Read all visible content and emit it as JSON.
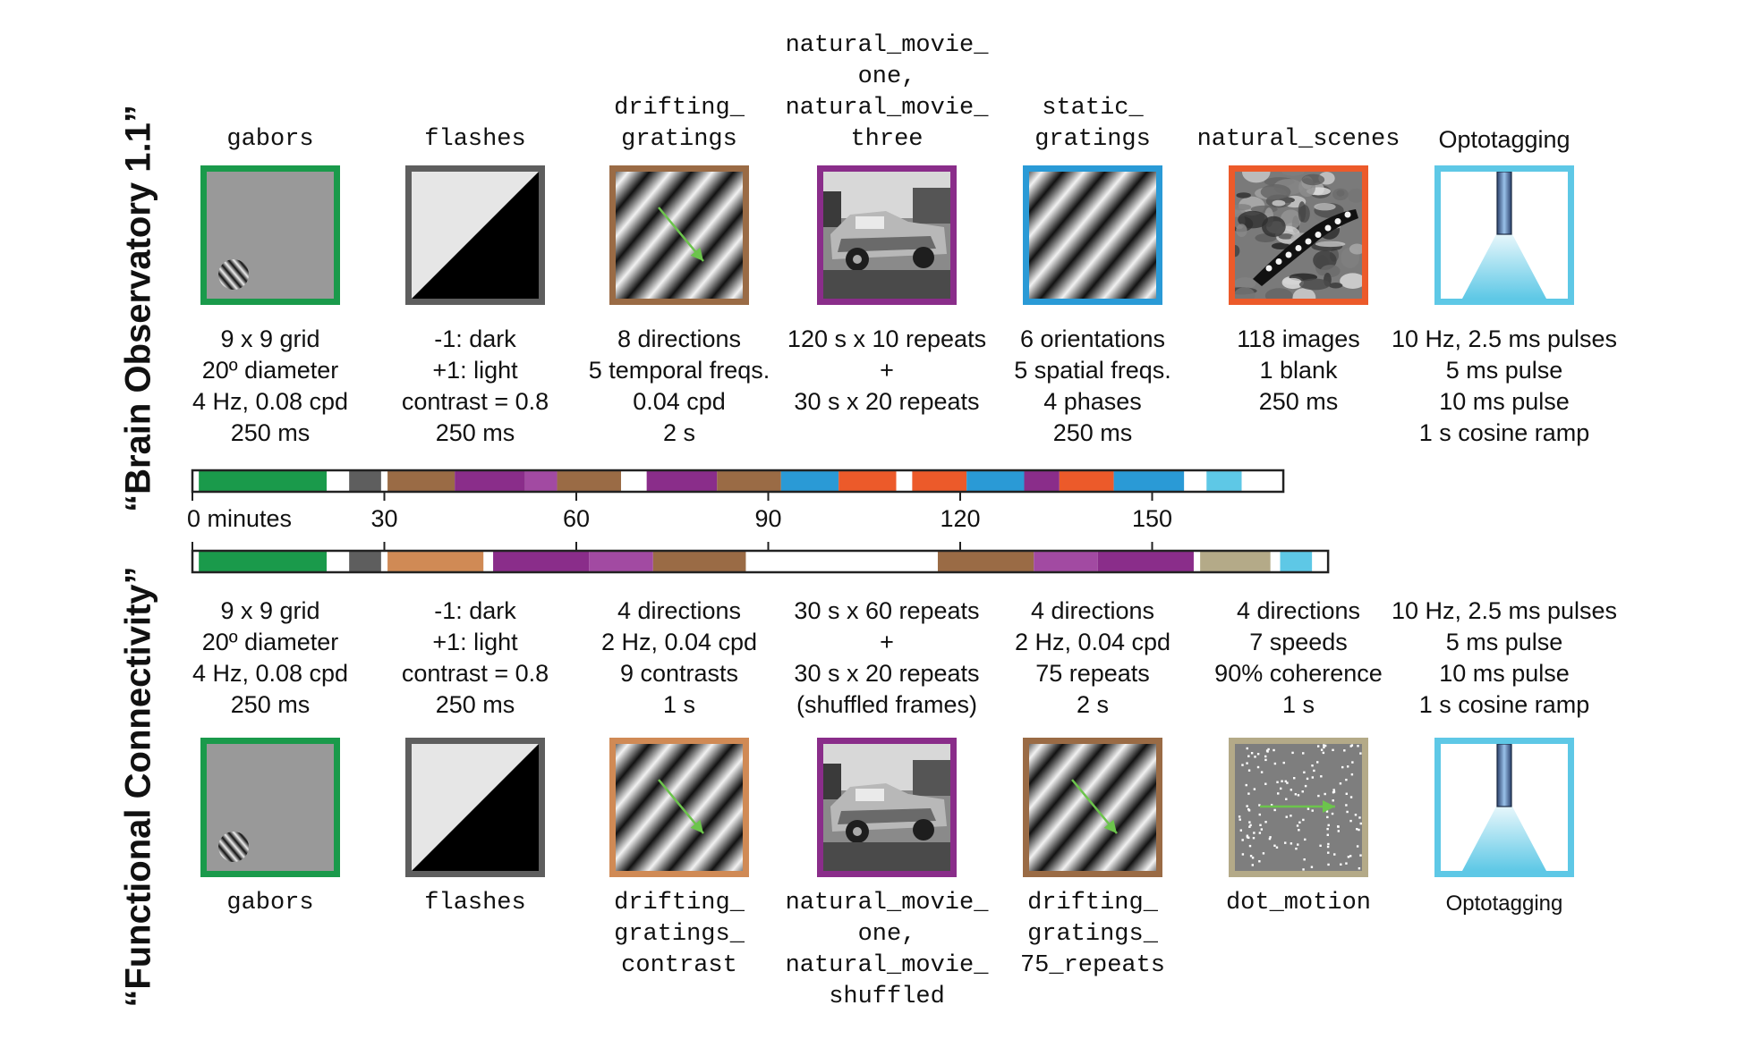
{
  "side_labels": {
    "top": "“Brain Observatory 1.1”",
    "bottom": "“Functional Connectivity”"
  },
  "colors": {
    "green": "#1a9a4b",
    "gray": "#5e5e5e",
    "brown": "#9a6b45",
    "orange_brown": "#d08a55",
    "purple": "#8a2d8a",
    "light_purple": "#a24aa2",
    "blue": "#2a9ad6",
    "orange": "#ec5a2a",
    "light_blue": "#5ec8e6",
    "khaki": "#b4aa88",
    "arrow_green": "#6cc44c"
  },
  "top_columns": [
    {
      "id": "gabors",
      "title": [
        "gabors"
      ],
      "mono": true,
      "border": "#1a9a4b",
      "icon": "gabor-icon",
      "params": [
        "9 x 9 grid",
        "20º diameter",
        "4 Hz, 0.08 cpd",
        "250 ms"
      ]
    },
    {
      "id": "flashes",
      "title": [
        "flashes"
      ],
      "mono": true,
      "border": "#5e5e5e",
      "icon": "flash-icon",
      "params": [
        "-1: dark",
        "+1: light",
        "contrast = 0.8",
        "250 ms"
      ]
    },
    {
      "id": "drifting",
      "title": [
        "drifting_",
        "gratings"
      ],
      "mono": true,
      "border": "#9a6b45",
      "icon": "drifting-grating-icon",
      "params": [
        "8 directions",
        "5 temporal freqs.",
        "0.04 cpd",
        "2 s"
      ]
    },
    {
      "id": "movie",
      "title": [
        "natural_movie_",
        "one,",
        "natural_movie_",
        "three"
      ],
      "mono": true,
      "border": "#8a2d8a",
      "icon": "movie-car-icon",
      "params": [
        "120 s x 10 repeats",
        "+",
        "30 s x 20 repeats"
      ]
    },
    {
      "id": "static",
      "title": [
        "static_",
        "gratings"
      ],
      "mono": true,
      "border": "#2a9ad6",
      "icon": "static-grating-icon",
      "params": [
        "6 orientations",
        "5 spatial freqs.",
        "4 phases",
        "250 ms"
      ]
    },
    {
      "id": "scenes",
      "title": [
        "natural_scenes"
      ],
      "mono": true,
      "border": "#ec5a2a",
      "icon": "natural-scene-icon",
      "params": [
        "118 images",
        "1 blank",
        "250 ms"
      ]
    },
    {
      "id": "opto",
      "title": [
        "Optotagging"
      ],
      "mono": false,
      "border": "#5ec8e6",
      "icon": "optotagging-icon",
      "params": [
        "10 Hz, 2.5 ms pulses",
        "5 ms pulse",
        "10 ms pulse",
        "1 s cosine ramp"
      ]
    }
  ],
  "bottom_columns": [
    {
      "id": "gabors",
      "name": [
        "gabors"
      ],
      "mono": true,
      "border": "#1a9a4b",
      "icon": "gabor-icon",
      "params": [
        "9 x 9 grid",
        "20º diameter",
        "4 Hz, 0.08 cpd",
        "250 ms"
      ]
    },
    {
      "id": "flashes",
      "name": [
        "flashes"
      ],
      "mono": true,
      "border": "#5e5e5e",
      "icon": "flash-icon",
      "params": [
        "-1: dark",
        "+1: light",
        "contrast = 0.8",
        "250 ms"
      ]
    },
    {
      "id": "contrast",
      "name": [
        "drifting_",
        "gratings_",
        "contrast"
      ],
      "mono": true,
      "border": "#d08a55",
      "icon": "drifting-grating-icon",
      "params": [
        "4 directions",
        "2 Hz, 0.04 cpd",
        "9 contrasts",
        "1 s"
      ]
    },
    {
      "id": "movie",
      "name": [
        "natural_movie_",
        "one,",
        "natural_movie_",
        "shuffled"
      ],
      "mono": true,
      "border": "#8a2d8a",
      "icon": "movie-car-icon",
      "params": [
        "30 s x 60 repeats",
        "+",
        "30 s x 20 repeats",
        "(shuffled frames)"
      ]
    },
    {
      "id": "drifting75",
      "name": [
        "drifting_",
        "gratings_",
        "75_repeats"
      ],
      "mono": true,
      "border": "#9a6b45",
      "icon": "drifting-grating-icon",
      "params": [
        "4 directions",
        "2 Hz, 0.04 cpd",
        "75 repeats",
        "2 s"
      ]
    },
    {
      "id": "dots",
      "name": [
        "dot_motion"
      ],
      "mono": true,
      "border": "#b4aa88",
      "icon": "dot-motion-icon",
      "params": [
        "4 directions",
        "7 speeds",
        "90% coherence",
        "1 s"
      ]
    },
    {
      "id": "opto",
      "name": [
        "Optotagging"
      ],
      "mono": false,
      "border": "#5ec8e6",
      "icon": "optotagging-icon",
      "params": [
        "10 Hz, 2.5 ms pulses",
        "5 ms pulse",
        "10 ms pulse",
        "1 s cosine ramp"
      ]
    }
  ],
  "timeline": {
    "unit": "minutes",
    "ticks": [
      {
        "value": 0,
        "label": "0 minutes"
      },
      {
        "value": 30,
        "label": "30"
      },
      {
        "value": 60,
        "label": "60"
      },
      {
        "value": 90,
        "label": "90"
      },
      {
        "value": 120,
        "label": "120"
      },
      {
        "value": 150,
        "label": "150"
      }
    ],
    "top_total": 170.5,
    "bottom_total": 177.5,
    "top_segments": [
      {
        "start": 0,
        "end": 1,
        "color": "#ffffff"
      },
      {
        "start": 1,
        "end": 21,
        "color": "#1a9a4b"
      },
      {
        "start": 21,
        "end": 24.5,
        "color": "#ffffff"
      },
      {
        "start": 24.5,
        "end": 29.5,
        "color": "#5e5e5e"
      },
      {
        "start": 29.5,
        "end": 30.5,
        "color": "#ffffff"
      },
      {
        "start": 30.5,
        "end": 41,
        "color": "#9a6b45"
      },
      {
        "start": 41,
        "end": 52,
        "color": "#8a2d8a"
      },
      {
        "start": 52,
        "end": 57,
        "color": "#a24aa2"
      },
      {
        "start": 57,
        "end": 67,
        "color": "#9a6b45"
      },
      {
        "start": 67,
        "end": 71,
        "color": "#ffffff"
      },
      {
        "start": 71,
        "end": 82,
        "color": "#8a2d8a"
      },
      {
        "start": 82,
        "end": 92,
        "color": "#9a6b45"
      },
      {
        "start": 92,
        "end": 101,
        "color": "#2a9ad6"
      },
      {
        "start": 101,
        "end": 110,
        "color": "#ec5a2a"
      },
      {
        "start": 110,
        "end": 112.5,
        "color": "#ffffff"
      },
      {
        "start": 112.5,
        "end": 121,
        "color": "#ec5a2a"
      },
      {
        "start": 121,
        "end": 130,
        "color": "#2a9ad6"
      },
      {
        "start": 130,
        "end": 135.5,
        "color": "#8a2d8a"
      },
      {
        "start": 135.5,
        "end": 144,
        "color": "#ec5a2a"
      },
      {
        "start": 144,
        "end": 155,
        "color": "#2a9ad6"
      },
      {
        "start": 155,
        "end": 158.5,
        "color": "#ffffff"
      },
      {
        "start": 158.5,
        "end": 164,
        "color": "#5ec8e6"
      },
      {
        "start": 164,
        "end": 170.5,
        "color": "#ffffff"
      }
    ],
    "bottom_segments": [
      {
        "start": 0,
        "end": 1,
        "color": "#ffffff"
      },
      {
        "start": 1,
        "end": 21,
        "color": "#1a9a4b"
      },
      {
        "start": 21,
        "end": 24.5,
        "color": "#ffffff"
      },
      {
        "start": 24.5,
        "end": 29.5,
        "color": "#5e5e5e"
      },
      {
        "start": 29.5,
        "end": 30.5,
        "color": "#ffffff"
      },
      {
        "start": 30.5,
        "end": 45.5,
        "color": "#d08a55"
      },
      {
        "start": 45.5,
        "end": 47,
        "color": "#ffffff"
      },
      {
        "start": 47,
        "end": 62,
        "color": "#8a2d8a"
      },
      {
        "start": 62,
        "end": 72,
        "color": "#a24aa2"
      },
      {
        "start": 72,
        "end": 86.5,
        "color": "#9a6b45"
      },
      {
        "start": 86.5,
        "end": 116.5,
        "color": "#ffffff"
      },
      {
        "start": 116.5,
        "end": 131.5,
        "color": "#9a6b45"
      },
      {
        "start": 131.5,
        "end": 141.5,
        "color": "#a24aa2"
      },
      {
        "start": 141.5,
        "end": 156.5,
        "color": "#8a2d8a"
      },
      {
        "start": 156.5,
        "end": 157.5,
        "color": "#ffffff"
      },
      {
        "start": 157.5,
        "end": 168.5,
        "color": "#b4aa88"
      },
      {
        "start": 168.5,
        "end": 170,
        "color": "#ffffff"
      },
      {
        "start": 170,
        "end": 175,
        "color": "#5ec8e6"
      },
      {
        "start": 175,
        "end": 177.5,
        "color": "#ffffff"
      }
    ]
  }
}
